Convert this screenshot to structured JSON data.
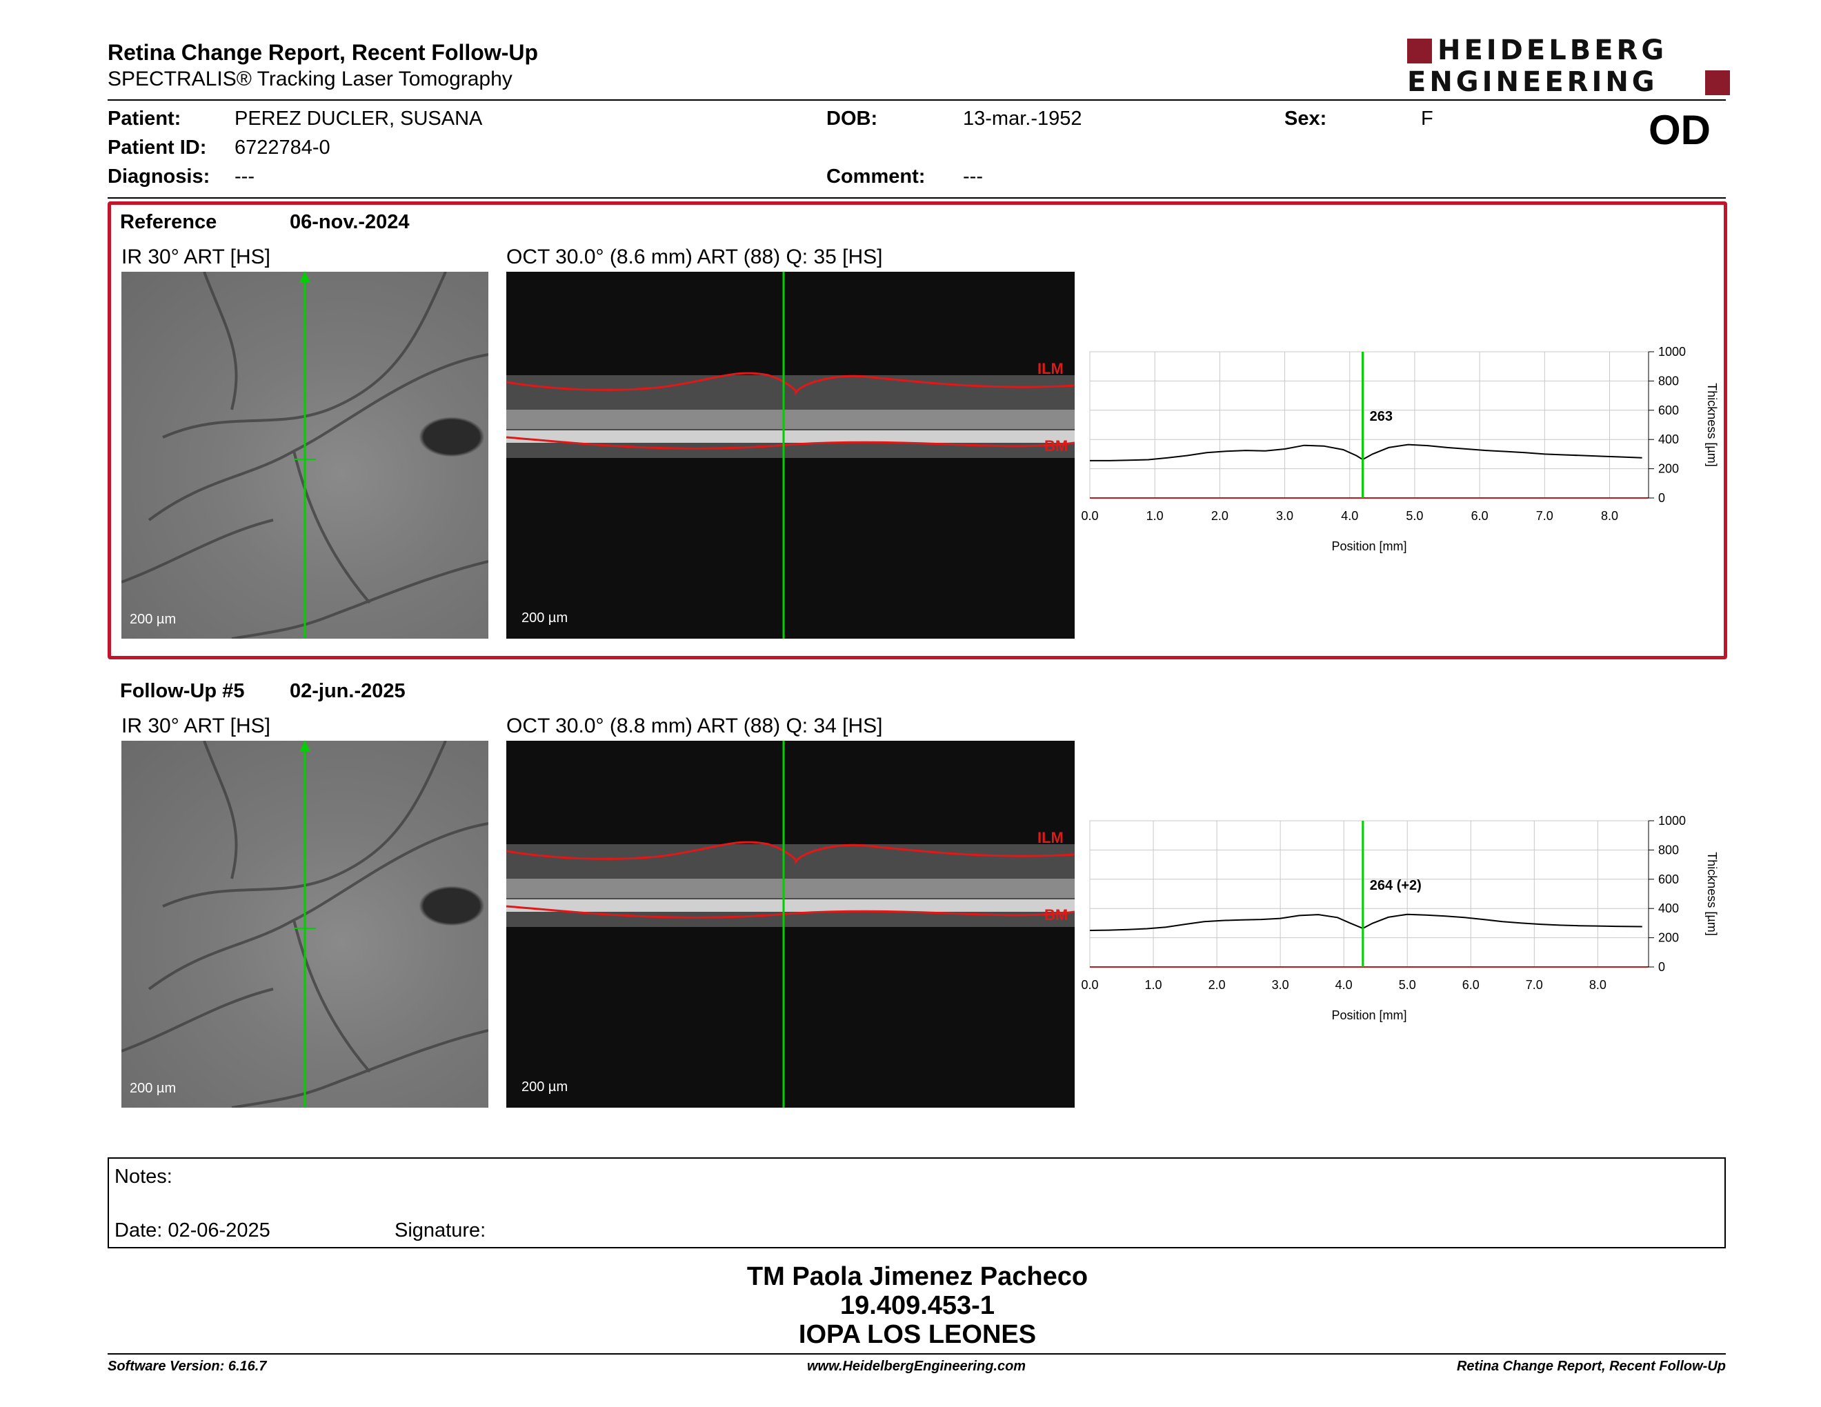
{
  "report": {
    "title": "Retina Change Report, Recent Follow-Up",
    "subtitle": "SPECTRALIS® Tracking Laser Tomography",
    "logo_line1": "HEIDELBERG",
    "logo_line2": "ENGINEERING",
    "eye": "OD"
  },
  "patient": {
    "name_label": "Patient:",
    "name": "PEREZ DUCLER, SUSANA",
    "id_label": "Patient ID:",
    "id": "6722784-0",
    "diagnosis_label": "Diagnosis:",
    "diagnosis": "---",
    "dob_label": "DOB:",
    "dob": "13-mar.-1952",
    "comment_label": "Comment:",
    "comment": "---",
    "sex_label": "Sex:",
    "sex": "F"
  },
  "reference": {
    "label": "Reference",
    "date": "06-nov.-2024",
    "ir_caption": "IR 30° ART [HS]",
    "oct_caption": "OCT 30.0° (8.6 mm) ART (88) Q: 35 [HS]",
    "scale": "200 µm",
    "ilm": "ILM",
    "bm": "BM"
  },
  "followup": {
    "label": "Follow-Up #5",
    "date": "02-jun.-2025",
    "ir_caption": "IR 30° ART [HS]",
    "oct_caption": "OCT 30.0° (8.8 mm) ART (88) Q: 34 [HS]",
    "scale": "200 µm",
    "ilm": "ILM",
    "bm": "BM"
  },
  "chart_data": [
    {
      "type": "line",
      "xlabel": "Position [mm]",
      "ylabel": "Thickness [µm]",
      "xlim": [
        0,
        8.6
      ],
      "ylim": [
        0,
        1000
      ],
      "xticks": [
        "0.0",
        "1.0",
        "2.0",
        "3.0",
        "4.0",
        "5.0",
        "6.0",
        "7.0",
        "8.0"
      ],
      "yticks": [
        "0",
        "200",
        "400",
        "600",
        "800",
        "1000"
      ],
      "grid": true,
      "marker_x": 4.2,
      "marker_label": "263",
      "series": [
        {
          "x": [
            0,
            0.3,
            0.6,
            0.9,
            1.2,
            1.5,
            1.8,
            2.1,
            2.4,
            2.7,
            3.0,
            3.3,
            3.6,
            3.9,
            4.1,
            4.2,
            4.35,
            4.6,
            4.9,
            5.2,
            5.5,
            5.8,
            6.1,
            6.4,
            6.7,
            7.0,
            7.3,
            7.6,
            7.9,
            8.2,
            8.5
          ],
          "values": [
            255,
            255,
            258,
            262,
            275,
            290,
            310,
            320,
            325,
            322,
            335,
            360,
            355,
            330,
            290,
            263,
            300,
            345,
            365,
            358,
            345,
            335,
            325,
            318,
            310,
            300,
            295,
            290,
            285,
            280,
            275
          ]
        }
      ]
    },
    {
      "type": "line",
      "xlabel": "Position [mm]",
      "ylabel": "Thickness [µm]",
      "xlim": [
        0,
        8.8
      ],
      "ylim": [
        0,
        1000
      ],
      "xticks": [
        "0.0",
        "1.0",
        "2.0",
        "3.0",
        "4.0",
        "5.0",
        "6.0",
        "7.0",
        "8.0"
      ],
      "yticks": [
        "0",
        "200",
        "400",
        "600",
        "800",
        "1000"
      ],
      "grid": true,
      "marker_x": 4.3,
      "marker_label": "264 (+2)",
      "series": [
        {
          "x": [
            0,
            0.3,
            0.6,
            0.9,
            1.2,
            1.5,
            1.8,
            2.1,
            2.4,
            2.7,
            3.0,
            3.3,
            3.6,
            3.9,
            4.1,
            4.3,
            4.45,
            4.7,
            5.0,
            5.3,
            5.6,
            5.9,
            6.2,
            6.5,
            6.8,
            7.1,
            7.4,
            7.7,
            8.0,
            8.3,
            8.7
          ],
          "values": [
            250,
            252,
            256,
            262,
            272,
            292,
            310,
            318,
            322,
            325,
            332,
            352,
            358,
            338,
            300,
            264,
            298,
            340,
            360,
            355,
            348,
            338,
            325,
            310,
            300,
            292,
            286,
            282,
            280,
            278,
            276
          ]
        }
      ]
    }
  ],
  "notes": {
    "notes_label": "Notes:",
    "date_label": "Date: 02-06-2025",
    "signature_label": "Signature:"
  },
  "signer": {
    "name": "TM Paola Jimenez Pacheco",
    "rut": "19.409.453-1",
    "institution": "IOPA LOS LEONES"
  },
  "footer": {
    "software": "Software Version: 6.16.7",
    "website": "www.HeidelbergEngineering.com",
    "report": "Retina Change Report, Recent Follow-Up"
  }
}
